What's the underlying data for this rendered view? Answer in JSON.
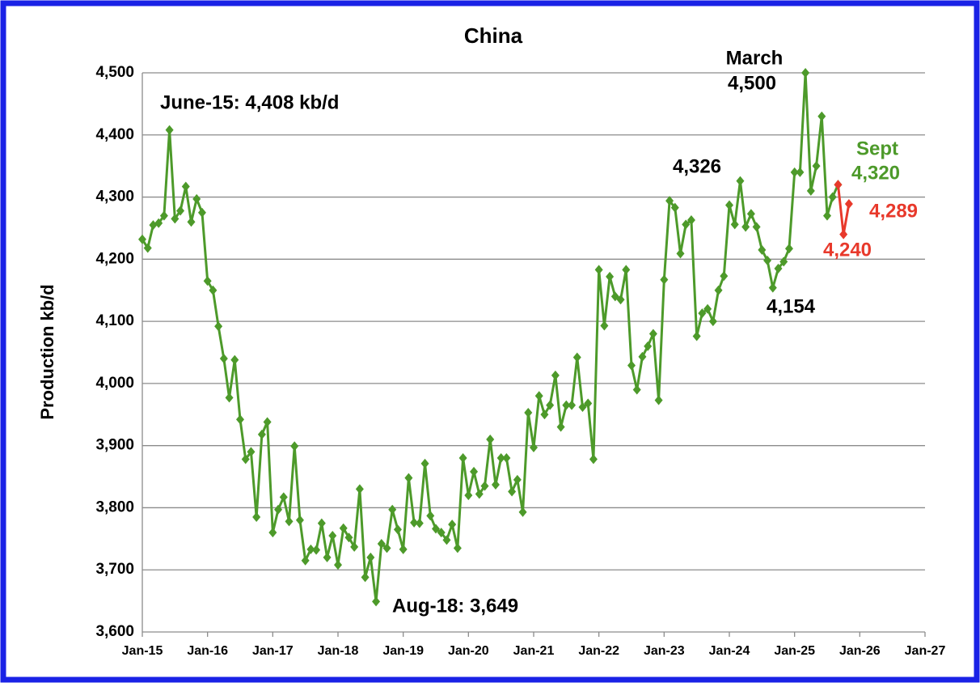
{
  "chart_data": {
    "type": "line",
    "title": "China",
    "y_label": "Production kb/d",
    "series": [
      {
        "color": "#4d9a2a",
        "x": [
          "Jan-15",
          "Feb-15",
          "Mar-15",
          "Apr-15",
          "May-15",
          "Jun-15",
          "Jul-15",
          "Aug-15",
          "Sep-15",
          "Oct-15",
          "Nov-15",
          "Dec-15",
          "Jan-16",
          "Feb-16",
          "Mar-16",
          "Apr-16",
          "May-16",
          "Jun-16",
          "Jul-16",
          "Aug-16",
          "Sep-16",
          "Oct-16",
          "Nov-16",
          "Dec-16",
          "Jan-17",
          "Feb-17",
          "Mar-17",
          "Apr-17",
          "May-17",
          "Jun-17",
          "Jul-17",
          "Aug-17",
          "Sep-17",
          "Oct-17",
          "Nov-17",
          "Dec-17",
          "Jan-18",
          "Feb-18",
          "Mar-18",
          "Apr-18",
          "May-18",
          "Jun-18",
          "Jul-18",
          "Aug-18",
          "Sep-18",
          "Oct-18",
          "Nov-18",
          "Dec-18",
          "Jan-19",
          "Feb-19",
          "Mar-19",
          "Apr-19",
          "May-19",
          "Jun-19",
          "Jul-19",
          "Aug-19",
          "Sep-19",
          "Oct-19",
          "Nov-19",
          "Dec-19",
          "Jan-20",
          "Feb-20",
          "Mar-20",
          "Apr-20",
          "May-20",
          "Jun-20",
          "Jul-20",
          "Aug-20",
          "Sep-20",
          "Oct-20",
          "Nov-20",
          "Dec-20",
          "Jan-21",
          "Feb-21",
          "Mar-21",
          "Apr-21",
          "May-21",
          "Jun-21",
          "Jul-21",
          "Aug-21",
          "Sep-21",
          "Oct-21",
          "Nov-21",
          "Dec-21",
          "Jan-22",
          "Feb-22",
          "Mar-22",
          "Apr-22",
          "May-22",
          "Jun-22",
          "Jul-22",
          "Aug-22",
          "Sep-22",
          "Oct-22",
          "Nov-22",
          "Dec-22",
          "Jan-23",
          "Feb-23",
          "Mar-23",
          "Apr-23",
          "May-23",
          "Jun-23",
          "Jul-23",
          "Aug-23",
          "Sep-23",
          "Oct-23",
          "Nov-23",
          "Dec-23",
          "Jan-24",
          "Feb-24",
          "Mar-24",
          "Apr-24",
          "May-24",
          "Jun-24",
          "Jul-24",
          "Aug-24",
          "Sep-24",
          "Oct-24",
          "Nov-24",
          "Dec-24",
          "Jan-25",
          "Feb-25",
          "Mar-25",
          "Apr-25",
          "May-25",
          "Jun-25",
          "Jul-25",
          "Aug-25",
          "Sep-25"
        ],
        "values": [
          4232,
          4218,
          4255,
          4258,
          4270,
          4408,
          4265,
          4278,
          4317,
          4260,
          4297,
          4275,
          4165,
          4150,
          4092,
          4040,
          3977,
          4038,
          3942,
          3878,
          3890,
          3785,
          3918,
          3938,
          3760,
          3797,
          3817,
          3778,
          3899,
          3780,
          3715,
          3733,
          3732,
          3775,
          3720,
          3755,
          3708,
          3767,
          3752,
          3737,
          3830,
          3688,
          3720,
          3649,
          3742,
          3735,
          3797,
          3765,
          3733,
          3848,
          3776,
          3775,
          3871,
          3787,
          3766,
          3760,
          3748,
          3773,
          3735,
          3880,
          3820,
          3858,
          3822,
          3835,
          3910,
          3837,
          3880,
          3880,
          3826,
          3845,
          3793,
          3953,
          3897,
          3980,
          3950,
          3965,
          4013,
          3930,
          3965,
          3965,
          4042,
          3962,
          3968,
          3878,
          4183,
          4093,
          4172,
          4140,
          4135,
          4183,
          4029,
          3990,
          4043,
          4060,
          4080,
          3973,
          4167,
          4294,
          4283,
          4209,
          4256,
          4263,
          4076,
          4113,
          4120,
          4100,
          4150,
          4173,
          4287,
          4256,
          4326,
          4252,
          4273,
          4252,
          4215,
          4198,
          4154,
          4185,
          4196,
          4217,
          4340,
          4340,
          4500,
          4310,
          4350,
          4430,
          4270,
          4300,
          4320
        ]
      },
      {
        "color": "#e8392b",
        "x": [
          "Sep-25",
          "Oct-25",
          "Nov-25"
        ],
        "values": [
          4320,
          4240,
          4289
        ]
      }
    ],
    "xlim": [
      "Jan-15",
      "Jan-27"
    ],
    "xticks": [
      "Jan-15",
      "Jan-16",
      "Jan-17",
      "Jan-18",
      "Jan-19",
      "Jan-20",
      "Jan-21",
      "Jan-22",
      "Jan-23",
      "Jan-24",
      "Jan-25",
      "Jan-26",
      "Jan-27"
    ],
    "ylim": [
      3600,
      4500
    ],
    "yticks": [
      {
        "value": 3600,
        "label": "3,600"
      },
      {
        "value": 3700,
        "label": "3,700"
      },
      {
        "value": 3800,
        "label": "3,800"
      },
      {
        "value": 3900,
        "label": "3,900"
      },
      {
        "value": 4000,
        "label": "4,000"
      },
      {
        "value": 4100,
        "label": "4,100"
      },
      {
        "value": 4200,
        "label": "4,200"
      },
      {
        "value": 4300,
        "label": "4,300"
      },
      {
        "value": 4400,
        "label": "4,400"
      },
      {
        "value": 4500,
        "label": "4,500"
      }
    ],
    "grid": true,
    "annotations": [
      {
        "text": "June-15: 4,408 kb/d",
        "color": "#000000"
      },
      {
        "text": "Aug-18: 3,649",
        "color": "#000000"
      },
      {
        "text": "March",
        "color": "#000000"
      },
      {
        "text": "4,500",
        "color": "#000000"
      },
      {
        "text": "4,326",
        "color": "#000000"
      },
      {
        "text": "4,154",
        "color": "#000000"
      },
      {
        "text": "Sept",
        "color": "#4d9a2a"
      },
      {
        "text": "4,320",
        "color": "#4d9a2a"
      },
      {
        "text": "4,240",
        "color": "#e8392b"
      },
      {
        "text": "4,289",
        "color": "#e8392b"
      }
    ]
  }
}
